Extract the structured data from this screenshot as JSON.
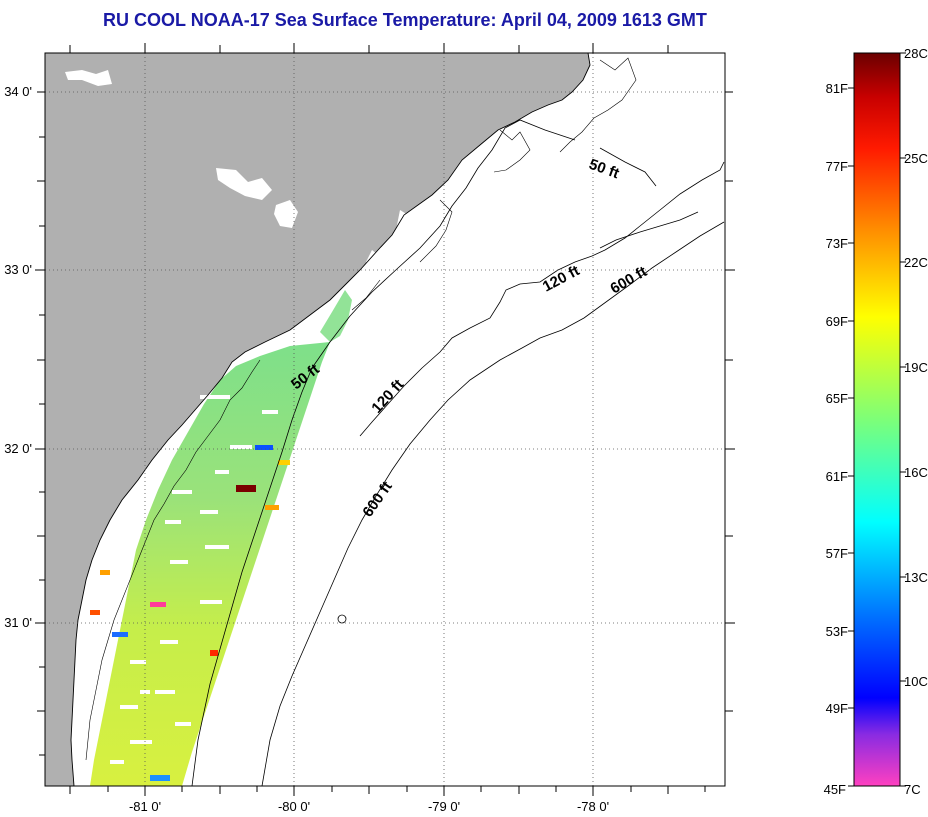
{
  "title": "RU COOL  NOAA-17  Sea Surface Temperature:  April 04, 2009 1613 GMT",
  "map": {
    "lon_ticks": [
      {
        "label": "-81 0'",
        "value": -81
      },
      {
        "label": "-80 0'",
        "value": -80
      },
      {
        "label": "-79 0'",
        "value": -79
      },
      {
        "label": "-78 0'",
        "value": -78
      }
    ],
    "lat_ticks": [
      {
        "label": "34 0'",
        "value": 34
      },
      {
        "label": "33 0'",
        "value": 33
      },
      {
        "label": "32 0'",
        "value": 32
      },
      {
        "label": "31 0'",
        "value": 31
      }
    ],
    "contour_labels": [
      "50 ft",
      "120 ft",
      "600 ft",
      "50 ft",
      "120 ft",
      "600 ft"
    ],
    "land_color": "#b0b0b0",
    "ocean_color": "#ffffff"
  },
  "colorbar": {
    "fahrenheit_labels": [
      "81F",
      "77F",
      "73F",
      "69F",
      "65F",
      "61F",
      "57F",
      "53F",
      "49F",
      "45F"
    ],
    "celsius_labels": [
      "28C",
      "25C",
      "22C",
      "19C",
      "16C",
      "13C",
      "10C",
      "7C"
    ],
    "colors_top_to_bottom": [
      "#7a0000",
      "#ff0000",
      "#ff7f00",
      "#ffff00",
      "#7fff7f",
      "#00ffff",
      "#007fff",
      "#0000ff",
      "#8000ff",
      "#ff40c0"
    ]
  }
}
